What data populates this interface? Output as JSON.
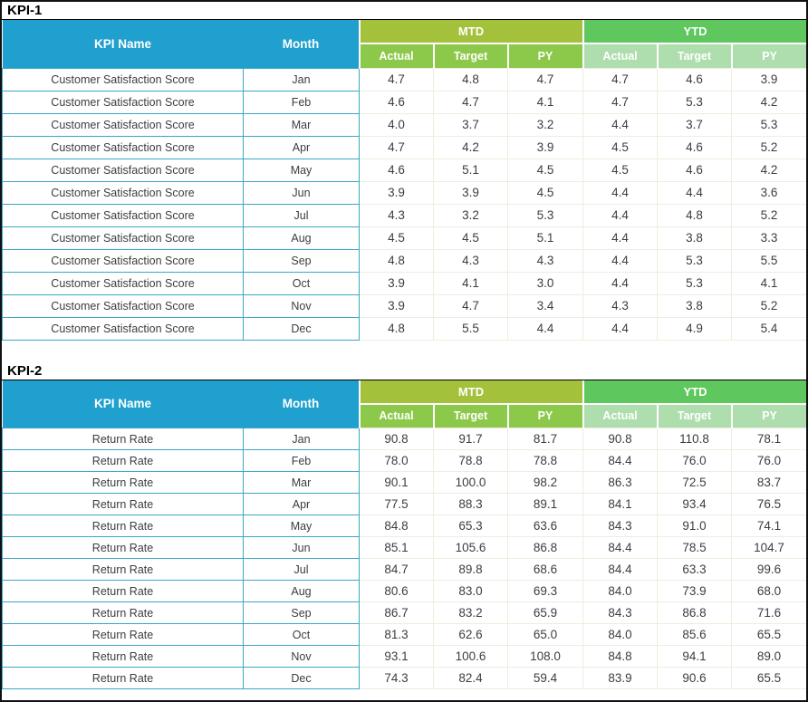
{
  "colors": {
    "header_blue": "#1FA0CE",
    "mtd_band": "#A4C13C",
    "mtd_sub": "#8CC849",
    "ytd_band": "#5EC85E",
    "ytd_sub": "#AEDEAE",
    "teal_border": "#3AA7C7",
    "pale_border": "#EDEDDE",
    "title_line": "#000000",
    "text_dark": "#3D3D3D"
  },
  "tables": [
    {
      "title": "KPI-1",
      "kpi_name_header": "KPI Name",
      "month_header": "Month",
      "groups": [
        {
          "label": "MTD",
          "cols": [
            "Actual",
            "Target",
            "PY"
          ]
        },
        {
          "label": "YTD",
          "cols": [
            "Actual",
            "Target",
            "PY"
          ]
        }
      ],
      "rows": [
        {
          "kpi": "Customer Satisfaction Score",
          "month": "Jan",
          "values": [
            "4.7",
            "4.8",
            "4.7",
            "4.7",
            "4.6",
            "3.9"
          ]
        },
        {
          "kpi": "Customer Satisfaction Score",
          "month": "Feb",
          "values": [
            "4.6",
            "4.7",
            "4.1",
            "4.7",
            "5.3",
            "4.2"
          ]
        },
        {
          "kpi": "Customer Satisfaction Score",
          "month": "Mar",
          "values": [
            "4.0",
            "3.7",
            "3.2",
            "4.4",
            "3.7",
            "5.3"
          ]
        },
        {
          "kpi": "Customer Satisfaction Score",
          "month": "Apr",
          "values": [
            "4.7",
            "4.2",
            "3.9",
            "4.5",
            "4.6",
            "5.2"
          ]
        },
        {
          "kpi": "Customer Satisfaction Score",
          "month": "May",
          "values": [
            "4.6",
            "5.1",
            "4.5",
            "4.5",
            "4.6",
            "4.2"
          ]
        },
        {
          "kpi": "Customer Satisfaction Score",
          "month": "Jun",
          "values": [
            "3.9",
            "3.9",
            "4.5",
            "4.4",
            "4.4",
            "3.6"
          ]
        },
        {
          "kpi": "Customer Satisfaction Score",
          "month": "Jul",
          "values": [
            "4.3",
            "3.2",
            "5.3",
            "4.4",
            "4.8",
            "5.2"
          ]
        },
        {
          "kpi": "Customer Satisfaction Score",
          "month": "Aug",
          "values": [
            "4.5",
            "4.5",
            "5.1",
            "4.4",
            "3.8",
            "3.3"
          ]
        },
        {
          "kpi": "Customer Satisfaction Score",
          "month": "Sep",
          "values": [
            "4.8",
            "4.3",
            "4.3",
            "4.4",
            "5.3",
            "5.5"
          ]
        },
        {
          "kpi": "Customer Satisfaction Score",
          "month": "Oct",
          "values": [
            "3.9",
            "4.1",
            "3.0",
            "4.4",
            "5.3",
            "4.1"
          ]
        },
        {
          "kpi": "Customer Satisfaction Score",
          "month": "Nov",
          "values": [
            "3.9",
            "4.7",
            "3.4",
            "4.3",
            "3.8",
            "5.2"
          ]
        },
        {
          "kpi": "Customer Satisfaction Score",
          "month": "Dec",
          "values": [
            "4.8",
            "5.5",
            "4.4",
            "4.4",
            "4.9",
            "5.4"
          ]
        }
      ]
    },
    {
      "title": "KPI-2",
      "kpi_name_header": "KPI Name",
      "month_header": "Month",
      "groups": [
        {
          "label": "MTD",
          "cols": [
            "Actual",
            "Target",
            "PY"
          ]
        },
        {
          "label": "YTD",
          "cols": [
            "Actual",
            "Target",
            "PY"
          ]
        }
      ],
      "rows": [
        {
          "kpi": "Return Rate",
          "month": "Jan",
          "values": [
            "90.8",
            "91.7",
            "81.7",
            "90.8",
            "110.8",
            "78.1"
          ]
        },
        {
          "kpi": "Return Rate",
          "month": "Feb",
          "values": [
            "78.0",
            "78.8",
            "78.8",
            "84.4",
            "76.0",
            "76.0"
          ]
        },
        {
          "kpi": "Return Rate",
          "month": "Mar",
          "values": [
            "90.1",
            "100.0",
            "98.2",
            "86.3",
            "72.5",
            "83.7"
          ]
        },
        {
          "kpi": "Return Rate",
          "month": "Apr",
          "values": [
            "77.5",
            "88.3",
            "89.1",
            "84.1",
            "93.4",
            "76.5"
          ]
        },
        {
          "kpi": "Return Rate",
          "month": "May",
          "values": [
            "84.8",
            "65.3",
            "63.6",
            "84.3",
            "91.0",
            "74.1"
          ]
        },
        {
          "kpi": "Return Rate",
          "month": "Jun",
          "values": [
            "85.1",
            "105.6",
            "86.8",
            "84.4",
            "78.5",
            "104.7"
          ]
        },
        {
          "kpi": "Return Rate",
          "month": "Jul",
          "values": [
            "84.7",
            "89.8",
            "68.6",
            "84.4",
            "63.3",
            "99.6"
          ]
        },
        {
          "kpi": "Return Rate",
          "month": "Aug",
          "values": [
            "80.6",
            "83.0",
            "69.3",
            "84.0",
            "73.9",
            "68.0"
          ]
        },
        {
          "kpi": "Return Rate",
          "month": "Sep",
          "values": [
            "86.7",
            "83.2",
            "65.9",
            "84.3",
            "86.8",
            "71.6"
          ]
        },
        {
          "kpi": "Return Rate",
          "month": "Oct",
          "values": [
            "81.3",
            "62.6",
            "65.0",
            "84.0",
            "85.6",
            "65.5"
          ]
        },
        {
          "kpi": "Return Rate",
          "month": "Nov",
          "values": [
            "93.1",
            "100.6",
            "108.0",
            "84.8",
            "94.1",
            "89.0"
          ]
        },
        {
          "kpi": "Return Rate",
          "month": "Dec",
          "values": [
            "74.3",
            "82.4",
            "59.4",
            "83.9",
            "90.6",
            "65.5"
          ]
        }
      ]
    }
  ]
}
